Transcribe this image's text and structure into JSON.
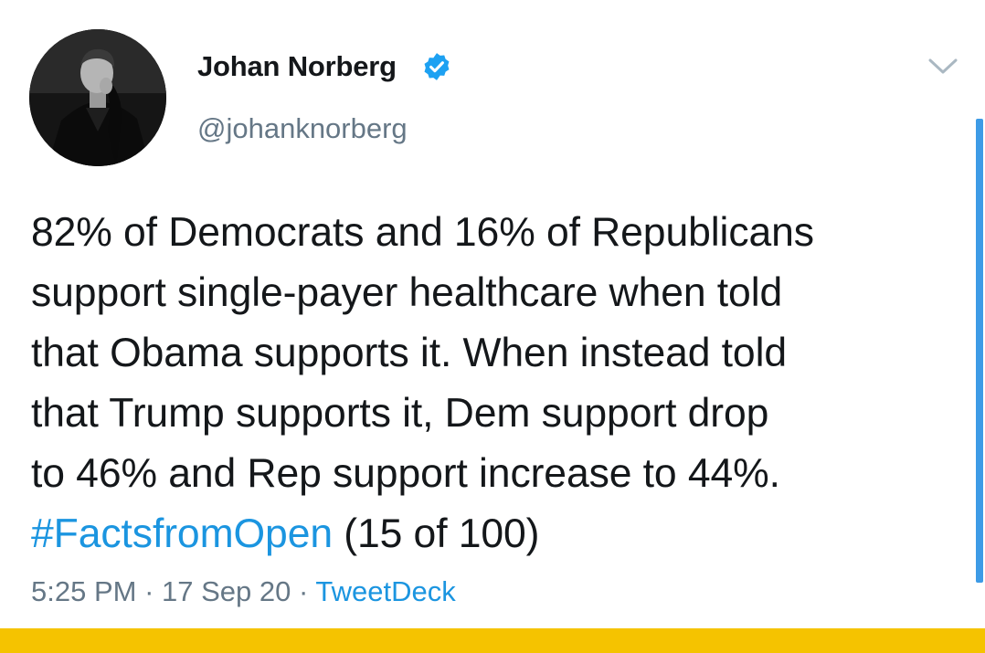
{
  "author": {
    "display_name": "Johan Norberg",
    "handle": "@johanknorberg",
    "verified": true
  },
  "tweet": {
    "lines": [
      "82% of Democrats and 16% of Republicans",
      "support single-payer healthcare when told",
      "that Obama supports it. When instead told",
      "that Trump supports it, Dem support drop",
      "to 46% and Rep support increase to 44%."
    ],
    "hashtag": "#FactsfromOpen",
    "suffix": " (15 of 100)"
  },
  "meta": {
    "time": "5:25 PM",
    "separator": " · ",
    "date": "17 Sep 20",
    "source": "TweetDeck"
  },
  "icons": {
    "verified": "verified-badge-icon",
    "caret": "chevron-down-icon"
  },
  "colors": {
    "link": "#1b95e0",
    "secondary_text": "#657786",
    "primary_text": "#14171a",
    "scrollbar": "#3d9be6",
    "bottom_bar": "#f5c300"
  }
}
